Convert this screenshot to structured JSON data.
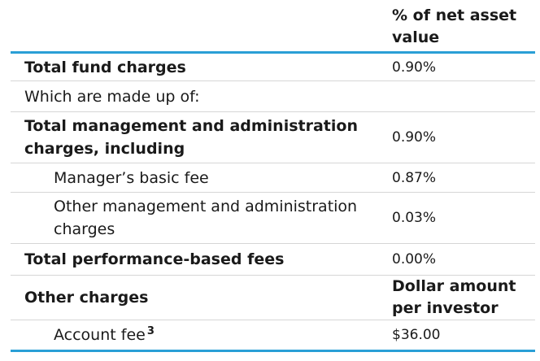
{
  "table": {
    "header_value": "% of net asset value",
    "rows": [
      {
        "label": "Total fund charges",
        "value": "0.90%"
      },
      {
        "label": "Which are made up of:",
        "value": ""
      },
      {
        "label": "Total management and administration charges, including",
        "value": "0.90%"
      },
      {
        "label": "Manager’s basic fee",
        "value": "0.87%"
      },
      {
        "label": "Other management and administration charges",
        "value": "0.03%"
      },
      {
        "label": "Total performance-based fees",
        "value": "0.00%"
      },
      {
        "label": "Other charges",
        "value": "Dollar amount per investor"
      },
      {
        "label": "Account fee",
        "footnote": "3",
        "value": "$36.00"
      }
    ]
  }
}
